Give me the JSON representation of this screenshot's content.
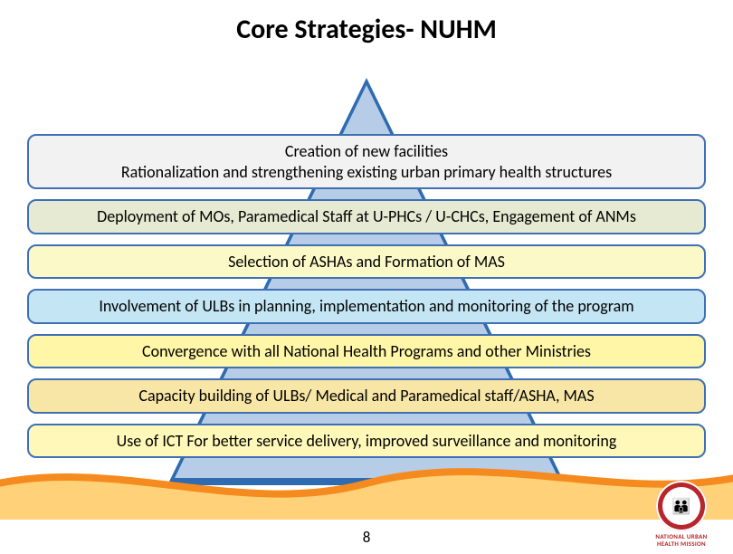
{
  "title": "Core Strategies- NUHM",
  "page_number": "8",
  "triangle": {
    "outer_color": "#2e6bb0",
    "inner_color": "#b7cce6"
  },
  "footer_wave": {
    "fill_color": "#ffd27a",
    "stripe_color": "#f58b1f"
  },
  "bars": [
    {
      "lines": [
        "Creation of new facilities",
        "Rationalization and strengthening existing urban primary health structures"
      ],
      "bg": "#f2f2f2",
      "border": "#3f6fb5"
    },
    {
      "lines": [
        "Deployment of MOs,  Paramedical Staff at U-PHCs / U-CHCs, Engagement of ANMs"
      ],
      "bg": "#e7ead2",
      "border": "#3f6fb5"
    },
    {
      "lines": [
        "Selection of ASHAs and Formation of MAS"
      ],
      "bg": "#fbf9c7",
      "border": "#3f6fb5"
    },
    {
      "lines": [
        "Involvement of ULBs in planning, implementation and monitoring of the program"
      ],
      "bg": "#c4e6f4",
      "border": "#3f6fb5"
    },
    {
      "lines": [
        "Convergence with all National Health Programs  and other Ministries"
      ],
      "bg": "#fff6a8",
      "border": "#3f6fb5"
    },
    {
      "lines": [
        "Capacity building of ULBs/ Medical and Paramedical staff/ASHA, MAS"
      ],
      "bg": "#f7e6a6",
      "border": "#3f6fb5"
    },
    {
      "lines": [
        "Use of ICT For better service delivery, improved surveillance and monitoring"
      ],
      "bg": "#fff8b8",
      "border": "#3f6fb5"
    }
  ],
  "logo": {
    "glyph": "👪",
    "line1": "NATIONAL URBAN",
    "line2": "HEALTH MISSION",
    "badge_color": "#b6262c"
  }
}
